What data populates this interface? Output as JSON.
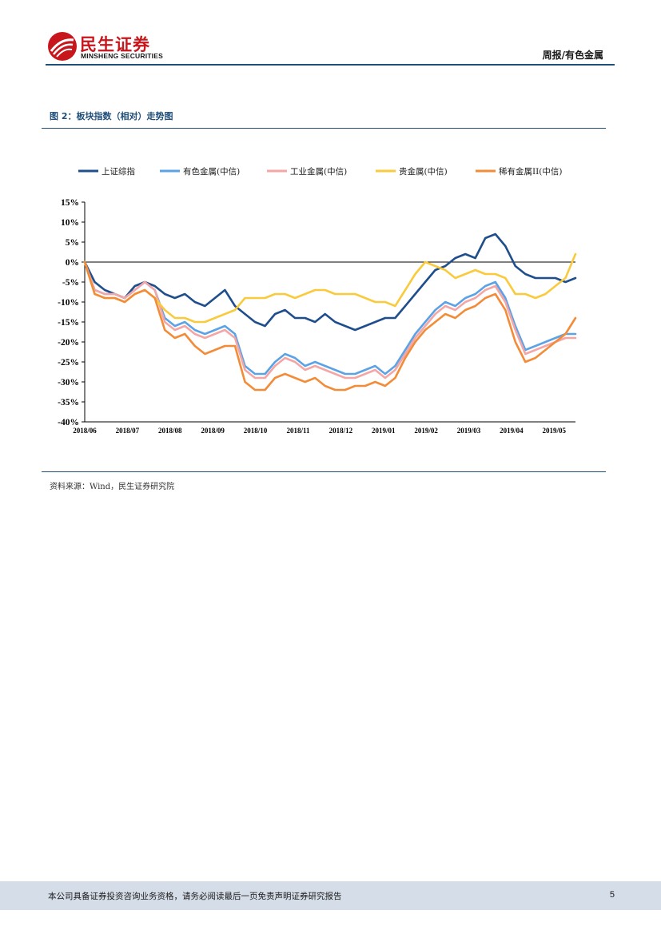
{
  "header": {
    "logo_cn": "民生证券",
    "logo_en": "MINSHENG SECURITIES",
    "report_type": "周报/有色金属"
  },
  "figure": {
    "title": "图 2：板块指数（相对）走势图",
    "source": "资料来源：Wind，民生证券研究院"
  },
  "footer": {
    "disclaimer": "本公司具备证券投资咨询业务资格，请务必阅读最后一页免责声明证券研究报告",
    "page": "5"
  },
  "colors": {
    "brand_red": "#c8161d",
    "rule_blue": "#1f4e79"
  },
  "chart_data": {
    "type": "line",
    "title": "",
    "xlabel": "",
    "ylabel": "",
    "ylim": [
      -40,
      15
    ],
    "yticks": [
      "15%",
      "10%",
      "5%",
      "0%",
      "-5%",
      "-10%",
      "-15%",
      "-20%",
      "-25%",
      "-30%",
      "-35%",
      "-40%"
    ],
    "xticks": [
      "2018/06",
      "2018/07",
      "2018/08",
      "2018/09",
      "2018/10",
      "2018/11",
      "2018/12",
      "2019/01",
      "2019/02",
      "2019/03",
      "2019/04",
      "2019/05"
    ],
    "legend_position": "top",
    "grid": false,
    "x": [
      "2018-06",
      "2018-06",
      "2018-06",
      "2018-06",
      "2018-07",
      "2018-07",
      "2018-07",
      "2018-07",
      "2018-08",
      "2018-08",
      "2018-08",
      "2018-08",
      "2018-09",
      "2018-09",
      "2018-09",
      "2018-09",
      "2018-10",
      "2018-10",
      "2018-10",
      "2018-10",
      "2018-11",
      "2018-11",
      "2018-11",
      "2018-11",
      "2018-12",
      "2018-12",
      "2018-12",
      "2018-12",
      "2019-01",
      "2019-01",
      "2019-01",
      "2019-01",
      "2019-02",
      "2019-02",
      "2019-02",
      "2019-02",
      "2019-03",
      "2019-03",
      "2019-03",
      "2019-03",
      "2019-04",
      "2019-04",
      "2019-04",
      "2019-04",
      "2019-05",
      "2019-05",
      "2019-05",
      "2019-05",
      "2019-05",
      "2019-05"
    ],
    "series": [
      {
        "name": "上证综指",
        "color": "#1f4e8c",
        "values": [
          0,
          -5,
          -7,
          -8,
          -9,
          -6,
          -5,
          -6,
          -8,
          -9,
          -8,
          -10,
          -11,
          -9,
          -7,
          -11,
          -13,
          -15,
          -16,
          -13,
          -12,
          -14,
          -14,
          -15,
          -13,
          -15,
          -16,
          -17,
          -16,
          -15,
          -14,
          -14,
          -11,
          -8,
          -5,
          -2,
          -1,
          1,
          2,
          1,
          6,
          7,
          4,
          -1,
          -3,
          -4,
          -4,
          -4,
          -5,
          -4
        ]
      },
      {
        "name": "有色金属(中信)",
        "color": "#5ba3e6",
        "values": [
          0,
          -7,
          -8,
          -8,
          -9,
          -7,
          -5,
          -7,
          -14,
          -16,
          -15,
          -17,
          -18,
          -17,
          -16,
          -18,
          -26,
          -28,
          -28,
          -25,
          -23,
          -24,
          -26,
          -25,
          -26,
          -27,
          -28,
          -28,
          -27,
          -26,
          -28,
          -26,
          -22,
          -18,
          -15,
          -12,
          -10,
          -11,
          -9,
          -8,
          -6,
          -5,
          -9,
          -16,
          -22,
          -21,
          -20,
          -19,
          -18,
          -18
        ]
      },
      {
        "name": "工业金属(中信)",
        "color": "#f4a6a6",
        "values": [
          0,
          -7,
          -8,
          -8,
          -9,
          -7,
          -5,
          -7,
          -15,
          -17,
          -16,
          -18,
          -19,
          -18,
          -17,
          -19,
          -27,
          -29,
          -29,
          -26,
          -24,
          -25,
          -27,
          -26,
          -27,
          -28,
          -29,
          -29,
          -28,
          -27,
          -29,
          -27,
          -23,
          -19,
          -16,
          -13,
          -11,
          -12,
          -10,
          -9,
          -7,
          -6,
          -10,
          -17,
          -23,
          -22,
          -21,
          -20,
          -19,
          -19
        ]
      },
      {
        "name": "贵金属(中信)",
        "color": "#f9cb3c",
        "values": [
          0,
          -8,
          -9,
          -9,
          -10,
          -8,
          -7,
          -9,
          -12,
          -14,
          -14,
          -15,
          -15,
          -14,
          -13,
          -12,
          -9,
          -9,
          -9,
          -8,
          -8,
          -9,
          -8,
          -7,
          -7,
          -8,
          -8,
          -8,
          -9,
          -10,
          -10,
          -11,
          -7,
          -3,
          0,
          -1,
          -2,
          -4,
          -3,
          -2,
          -3,
          -3,
          -4,
          -8,
          -8,
          -9,
          -8,
          -6,
          -4,
          2
        ]
      },
      {
        "name": "稀有金属II(中信)",
        "color": "#f28c38",
        "values": [
          0,
          -8,
          -9,
          -9,
          -10,
          -8,
          -7,
          -9,
          -17,
          -19,
          -18,
          -21,
          -23,
          -22,
          -21,
          -21,
          -30,
          -32,
          -32,
          -29,
          -28,
          -29,
          -30,
          -29,
          -31,
          -32,
          -32,
          -31,
          -31,
          -30,
          -31,
          -29,
          -24,
          -20,
          -17,
          -15,
          -13,
          -14,
          -12,
          -11,
          -9,
          -8,
          -12,
          -20,
          -25,
          -24,
          -22,
          -20,
          -18,
          -14
        ]
      }
    ]
  }
}
